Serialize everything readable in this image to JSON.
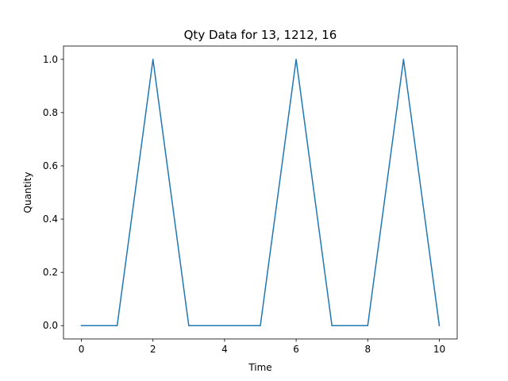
{
  "chart_data": {
    "type": "line",
    "title": "Qty Data for 13, 1212, 16",
    "xlabel": "Time",
    "ylabel": "Quantity",
    "xlim": [
      -0.5,
      10.5
    ],
    "ylim": [
      -0.05,
      1.05
    ],
    "x_ticks": [
      0,
      2,
      4,
      6,
      8,
      10
    ],
    "y_ticks": [
      0.0,
      0.2,
      0.4,
      0.6,
      0.8,
      1.0
    ],
    "x_tick_labels": [
      "0",
      "2",
      "4",
      "6",
      "8",
      "10"
    ],
    "y_tick_labels": [
      "0.0",
      "0.2",
      "0.4",
      "0.6",
      "0.8",
      "1.0"
    ],
    "grid": false,
    "series": [
      {
        "color": "#1f77b4",
        "x": [
          0,
          1,
          2,
          3,
          4,
          5,
          6,
          7,
          8,
          9,
          10
        ],
        "y": [
          0,
          0,
          1,
          0,
          0,
          0,
          1,
          0,
          0,
          1,
          0
        ]
      }
    ]
  }
}
